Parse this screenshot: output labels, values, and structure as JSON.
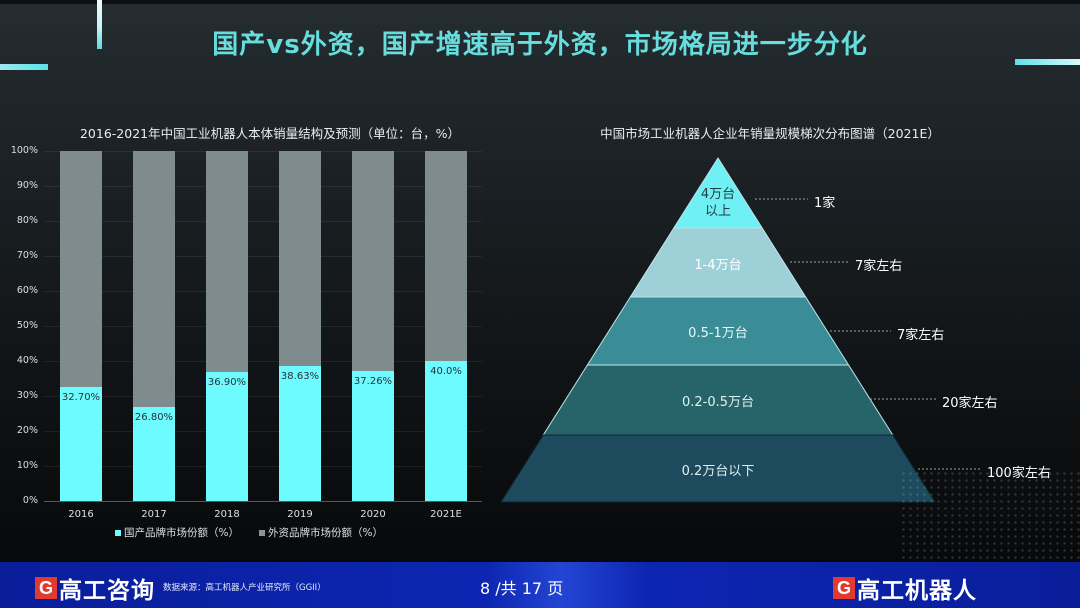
{
  "page": {
    "title": "国产vs外资，国产增速高于外资，市场格局进一步分化"
  },
  "colors": {
    "accent_cyan": "#6dfbff",
    "foreign_gray": "#7f8c8d",
    "title_teal": "#67dedd",
    "footer_blue": "#0c26b2",
    "logo_red": "#e23a2e"
  },
  "bar_chart": {
    "title": "2016-2021年中国工业机器人本体销量结构及预测（单位：台，%）",
    "y_ticks": [
      "100%",
      "90%",
      "80%",
      "70%",
      "60%",
      "50%",
      "40%",
      "30%",
      "20%",
      "10%",
      "0%"
    ],
    "bars": [
      {
        "year": "2016",
        "domestic": 32.7,
        "label": "32.70%"
      },
      {
        "year": "2017",
        "domestic": 26.8,
        "label": "26.80%"
      },
      {
        "year": "2018",
        "domestic": 36.9,
        "label": "36.90%"
      },
      {
        "year": "2019",
        "domestic": 38.63,
        "label": "38.63%"
      },
      {
        "year": "2020",
        "domestic": 37.26,
        "label": "37.26%"
      },
      {
        "year": "2021E",
        "domestic": 40.0,
        "label": "40.0%"
      }
    ],
    "legend": {
      "domestic": "国产品牌市场份额（%）",
      "foreign": "外资品牌市场份额（%）"
    }
  },
  "pyramid": {
    "title": "中国市场工业机器人企业年销量规模梯次分布图谱（2021E）",
    "layers": [
      {
        "label_line1": "4万台",
        "label_line2": "以上",
        "count": "1家",
        "color": "#6ef0f5",
        "text_color": "#1f3d44"
      },
      {
        "label_line1": "1-4万台",
        "label_line2": "",
        "count": "7家左右",
        "color": "#9ed0d8",
        "text_color": "#ffffff"
      },
      {
        "label_line1": "0.5-1万台",
        "label_line2": "",
        "count": "7家左右",
        "color": "#3a8d96",
        "text_color": "#e8fbfc"
      },
      {
        "label_line1": "0.2-0.5万台",
        "label_line2": "",
        "count": "20家左右",
        "color": "#27646a",
        "text_color": "#e0f0f2"
      },
      {
        "label_line1": "0.2万台以下",
        "label_line2": "",
        "count": "100家左右",
        "color": "#1d4a5c",
        "text_color": "#e0f0f2"
      }
    ]
  },
  "footer": {
    "logo_left_g": "G",
    "logo_left_text": "高工咨询",
    "source": "数据来源：高工机器人产业研究所（GGII）",
    "page_indicator": "8 /共 17 页",
    "logo_right_g": "G",
    "logo_right_text": "高工机器人"
  },
  "chart_data": [
    {
      "type": "bar",
      "stacked": true,
      "title": "2016-2021年中国工业机器人本体销量结构及预测（单位：台，%）",
      "categories": [
        "2016",
        "2017",
        "2018",
        "2019",
        "2020",
        "2021E"
      ],
      "series": [
        {
          "name": "国产品牌市场份额（%）",
          "color": "#6dfbff",
          "values": [
            32.7,
            26.8,
            36.9,
            38.63,
            37.26,
            40.0
          ]
        },
        {
          "name": "外资品牌市场份额（%）",
          "color": "#7f8c8d",
          "values": [
            67.3,
            73.2,
            63.1,
            61.37,
            62.74,
            60.0
          ]
        }
      ],
      "data_labels": [
        "32.70%",
        "26.80%",
        "36.90%",
        "38.63%",
        "37.26%",
        "40.0%"
      ],
      "xlabel": "",
      "ylabel": "",
      "ylim": [
        0,
        100
      ],
      "y_ticks": [
        "0%",
        "10%",
        "20%",
        "30%",
        "40%",
        "50%",
        "60%",
        "70%",
        "80%",
        "90%",
        "100%"
      ],
      "grid": true,
      "legend_position": "bottom"
    },
    {
      "type": "pyramid",
      "title": "中国市场工业机器人企业年销量规模梯次分布图谱（2021E）",
      "categories": [
        "4万台以上",
        "1-4万台",
        "0.5-1万台",
        "0.2-0.5万台",
        "0.2万台以下"
      ],
      "values": [
        "1家",
        "7家左右",
        "7家左右",
        "20家左右",
        "100家左右"
      ],
      "values_numeric": [
        1,
        7,
        7,
        20,
        100
      ]
    }
  ]
}
